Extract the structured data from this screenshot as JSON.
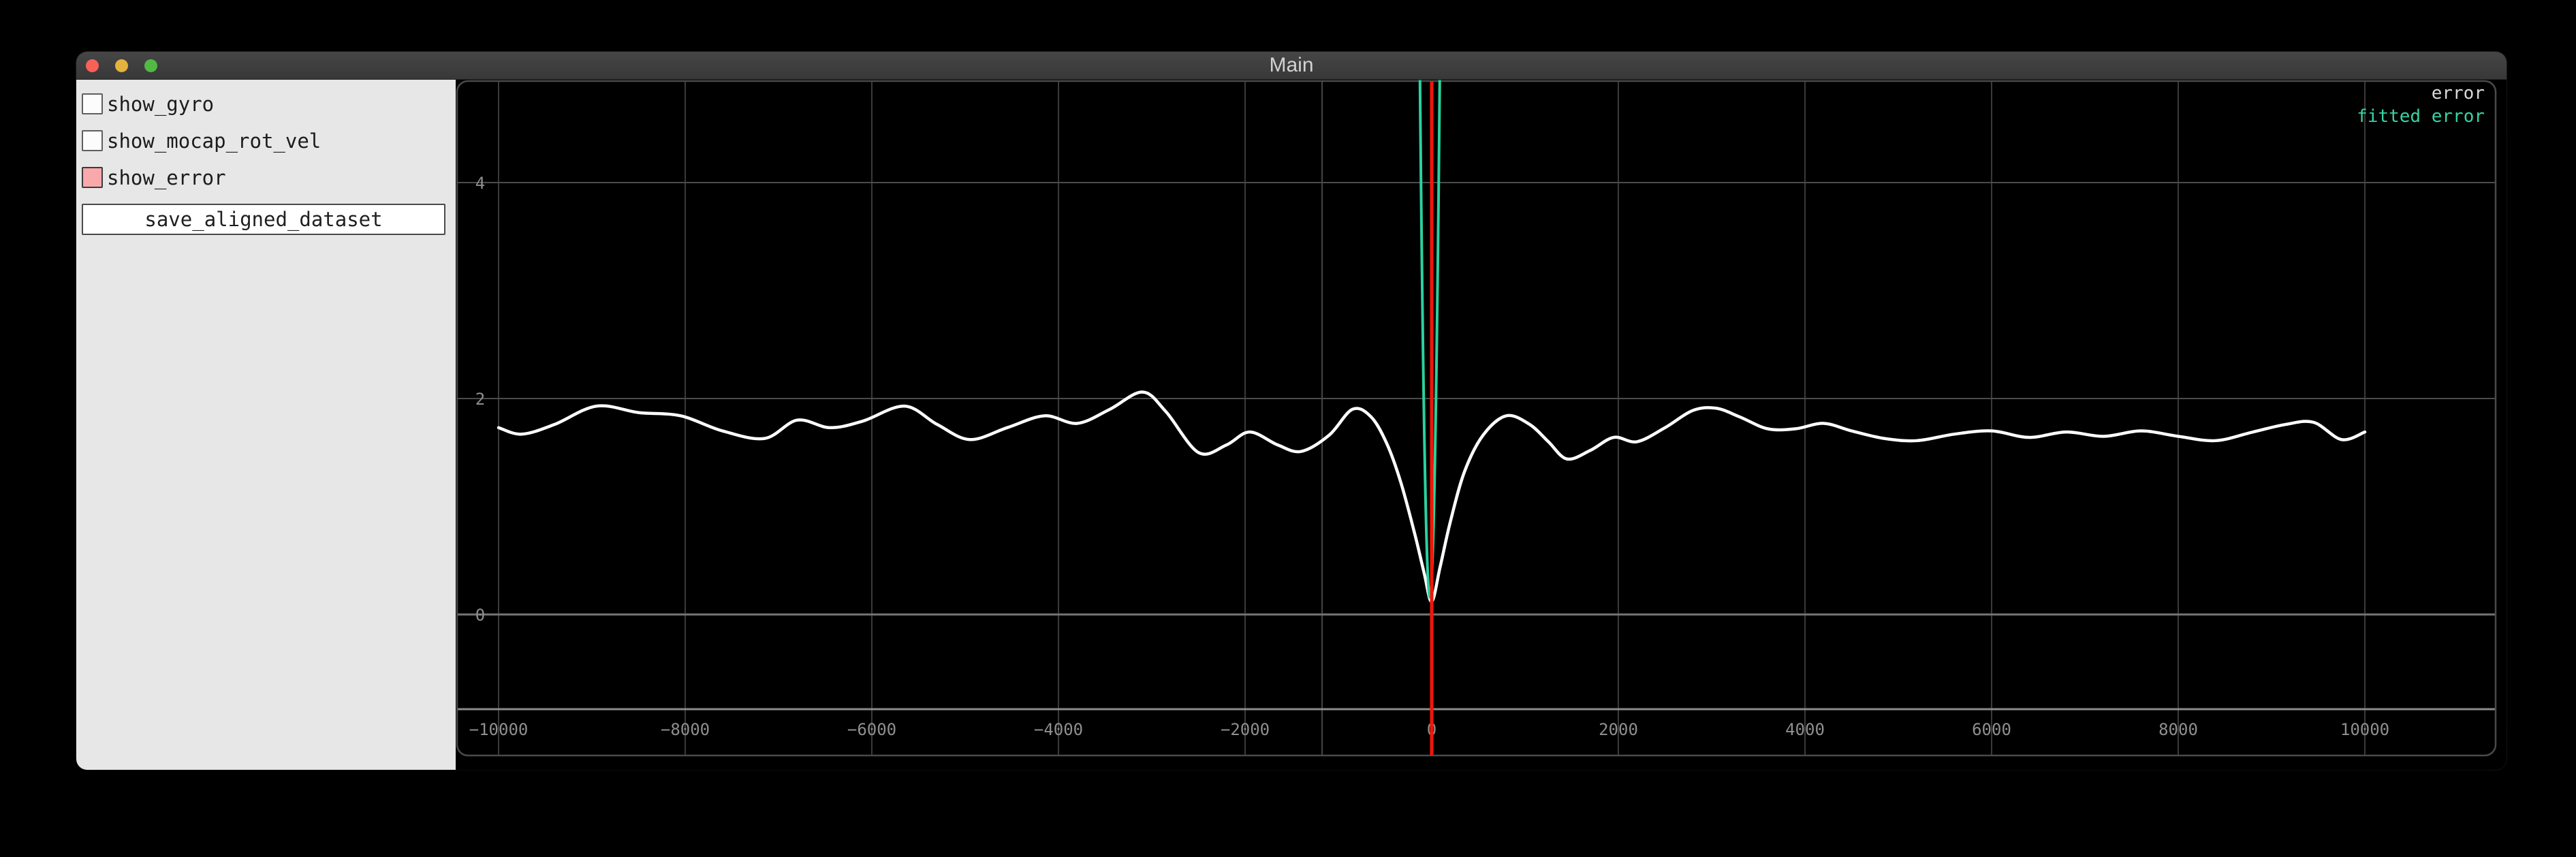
{
  "window": {
    "title": "Main",
    "traffic_lights": {
      "close": "#f96157",
      "minimize": "#e3b33e",
      "zoom": "#52ba44"
    }
  },
  "sidebar": {
    "checkboxes": [
      {
        "label": "show_gyro",
        "checked": false
      },
      {
        "label": "show_mocap_rot_vel",
        "checked": false
      },
      {
        "label": "show_error",
        "checked": true,
        "checked_color": "#f9a8ac"
      }
    ],
    "save_button_label": "save_aligned_dataset"
  },
  "chart_data": {
    "type": "line",
    "title": "",
    "xlabel": "",
    "ylabel": "",
    "xlim": [
      -10460,
      11480
    ],
    "ylim": [
      -0.88,
      4.95
    ],
    "x_ticks": [
      -10000,
      -8000,
      -6000,
      -4000,
      -2000,
      0,
      2000,
      4000,
      6000,
      8000,
      10000
    ],
    "y_ticks": [
      0,
      2,
      4
    ],
    "grid": true,
    "legend_position": "top-right",
    "legend": [
      {
        "label": "error",
        "color": "#d9d9d9"
      },
      {
        "label": "fitted error",
        "color": "#36d4a3"
      }
    ],
    "series": [
      {
        "name": "error",
        "color": "#ffffff",
        "points": [
          [
            -10000,
            1.73
          ],
          [
            -9750,
            1.67
          ],
          [
            -9400,
            1.76
          ],
          [
            -8950,
            1.93
          ],
          [
            -8500,
            1.87
          ],
          [
            -8050,
            1.84
          ],
          [
            -7600,
            1.7
          ],
          [
            -7150,
            1.63
          ],
          [
            -6800,
            1.8
          ],
          [
            -6450,
            1.73
          ],
          [
            -6100,
            1.79
          ],
          [
            -5650,
            1.93
          ],
          [
            -5300,
            1.76
          ],
          [
            -4950,
            1.62
          ],
          [
            -4550,
            1.73
          ],
          [
            -4150,
            1.84
          ],
          [
            -3800,
            1.77
          ],
          [
            -3450,
            1.9
          ],
          [
            -3100,
            2.06
          ],
          [
            -2850,
            1.88
          ],
          [
            -2500,
            1.5
          ],
          [
            -2200,
            1.57
          ],
          [
            -1950,
            1.69
          ],
          [
            -1650,
            1.57
          ],
          [
            -1400,
            1.51
          ],
          [
            -1100,
            1.66
          ],
          [
            -850,
            1.9
          ],
          [
            -650,
            1.83
          ],
          [
            -480,
            1.58
          ],
          [
            -330,
            1.22
          ],
          [
            -180,
            0.74
          ],
          [
            -80,
            0.38
          ],
          [
            0,
            0.12
          ],
          [
            90,
            0.44
          ],
          [
            200,
            0.86
          ],
          [
            350,
            1.32
          ],
          [
            550,
            1.66
          ],
          [
            800,
            1.84
          ],
          [
            1050,
            1.76
          ],
          [
            1250,
            1.6
          ],
          [
            1450,
            1.44
          ],
          [
            1700,
            1.52
          ],
          [
            1950,
            1.64
          ],
          [
            2200,
            1.6
          ],
          [
            2500,
            1.73
          ],
          [
            2800,
            1.89
          ],
          [
            3050,
            1.91
          ],
          [
            3300,
            1.83
          ],
          [
            3600,
            1.72
          ],
          [
            3900,
            1.72
          ],
          [
            4200,
            1.77
          ],
          [
            4500,
            1.7
          ],
          [
            4850,
            1.63
          ],
          [
            5200,
            1.61
          ],
          [
            5600,
            1.67
          ],
          [
            6000,
            1.7
          ],
          [
            6400,
            1.64
          ],
          [
            6800,
            1.69
          ],
          [
            7200,
            1.65
          ],
          [
            7600,
            1.7
          ],
          [
            8000,
            1.65
          ],
          [
            8400,
            1.61
          ],
          [
            8800,
            1.69
          ],
          [
            9150,
            1.76
          ],
          [
            9450,
            1.78
          ],
          [
            9750,
            1.62
          ],
          [
            10000,
            1.69
          ]
        ]
      },
      {
        "name": "fitted error",
        "color": "#2bd19e",
        "shape": "narrow-parabola",
        "x0": -20,
        "y_tip": 0.16,
        "y_top": 4.95,
        "half_width": 106
      }
    ],
    "vline": {
      "x": 0,
      "color": "#f01708"
    },
    "aux_vline": {
      "x": -1175,
      "color": "#454545"
    },
    "style": {
      "background": "#000000",
      "tick_color": "#8f8f8f",
      "grid_v": "#3a3a3a",
      "grid_h": "#4b4b4b",
      "zero_line": "#757575",
      "axis_line": "#8c8c8c",
      "frame": "#4a4a4a"
    }
  }
}
